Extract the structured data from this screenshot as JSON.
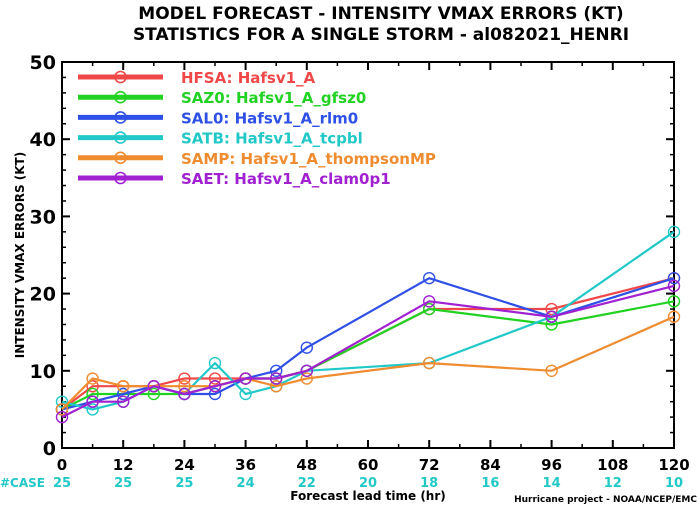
{
  "chart_data": {
    "type": "line",
    "title": "MODEL FORECAST - INTENSITY VMAX ERRORS (KT)",
    "subtitle": "STATISTICS FOR A SINGLE STORM - al082021_HENRI",
    "xlabel": "Forecast lead time (hr)",
    "ylabel": "INTENSITY VMAX ERRORS (KT)",
    "xlim": [
      0,
      120
    ],
    "ylim": [
      0,
      50
    ],
    "x_ticks": [
      0,
      12,
      24,
      36,
      48,
      60,
      72,
      84,
      96,
      108,
      120
    ],
    "y_ticks": [
      0,
      10,
      20,
      30,
      40,
      50
    ],
    "grid": false,
    "legend_position": "top-left",
    "case_label": "#CASE",
    "case_x": [
      0,
      12,
      24,
      36,
      48,
      60,
      72,
      84,
      96,
      108,
      120
    ],
    "case_counts": [
      25,
      25,
      25,
      24,
      22,
      20,
      18,
      16,
      14,
      12,
      10
    ],
    "credit": "Hurricane project - NOAA/NCEP/EMC",
    "series": [
      {
        "legend": "HFSA: Hafsv1_A",
        "color": "#f04848",
        "x": [
          0,
          6,
          12,
          18,
          24,
          30,
          36,
          42,
          48,
          72,
          96,
          120
        ],
        "y": [
          5,
          8,
          8,
          8,
          9,
          9,
          9,
          9,
          10,
          18,
          18,
          22
        ]
      },
      {
        "legend": "SAZ0: Hafsv1_A_gfsz0",
        "color": "#22d222",
        "x": [
          0,
          6,
          12,
          18,
          24,
          30,
          36,
          42,
          48,
          72,
          96,
          120
        ],
        "y": [
          5,
          7,
          7,
          7,
          7,
          8,
          9,
          9,
          10,
          18,
          16,
          19
        ]
      },
      {
        "legend": "SAL0: Hafsv1_A_rlm0",
        "color": "#2f50e6",
        "x": [
          0,
          6,
          12,
          18,
          24,
          30,
          36,
          42,
          48,
          72,
          96,
          120
        ],
        "y": [
          5,
          6,
          7,
          8,
          7,
          7,
          9,
          10,
          13,
          22,
          17,
          22
        ]
      },
      {
        "legend": "SATB: Hafsv1_A_tcpbl",
        "color": "#22c8c8",
        "x": [
          0,
          6,
          12,
          18,
          24,
          30,
          36,
          42,
          48,
          72,
          96,
          120
        ],
        "y": [
          6,
          5,
          6,
          8,
          7,
          11,
          7,
          8,
          10,
          11,
          17,
          28
        ]
      },
      {
        "legend": "SAMP: Hafsv1_A_thompsonMP",
        "color": "#f08c30",
        "x": [
          0,
          6,
          12,
          18,
          24,
          30,
          36,
          42,
          48,
          72,
          96,
          120
        ],
        "y": [
          5,
          9,
          8,
          8,
          8,
          8,
          9,
          8,
          9,
          11,
          10,
          17
        ]
      },
      {
        "legend": "SAET: Hafsv1_A_clam0p1",
        "color": "#a020d2",
        "x": [
          0,
          6,
          12,
          18,
          24,
          30,
          36,
          42,
          48,
          72,
          96,
          120
        ],
        "y": [
          4,
          6,
          6,
          8,
          7,
          8,
          9,
          9,
          10,
          19,
          17,
          21
        ]
      }
    ]
  }
}
